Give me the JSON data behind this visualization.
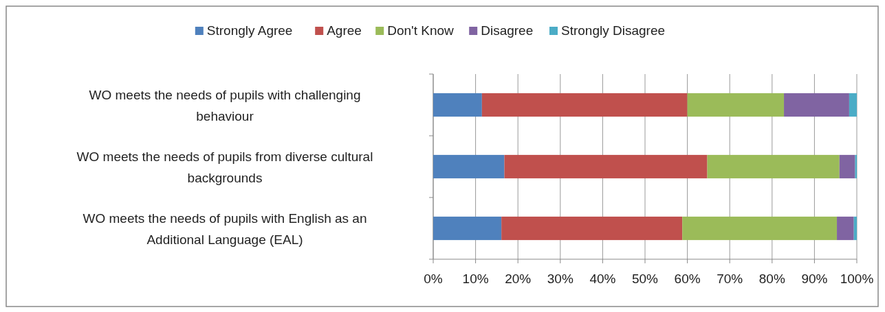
{
  "chart_data": {
    "type": "bar",
    "orientation": "horizontal",
    "stacked": true,
    "categories": [
      "WO meets the needs of pupils with challenging behaviour",
      "WO meets the needs of pupils from diverse cultural backgrounds",
      "WO meets the needs of pupils with English as an Additional Language (EAL)"
    ],
    "series": [
      {
        "name": "Strongly Agree",
        "color": "#4f81bd",
        "values": [
          11.5,
          16.8,
          16.1
        ]
      },
      {
        "name": "Agree",
        "color": "#c0504d",
        "values": [
          48.5,
          47.9,
          42.7
        ]
      },
      {
        "name": "Don't Know",
        "color": "#9bbb59",
        "values": [
          22.8,
          31.2,
          36.5
        ]
      },
      {
        "name": "Disagree",
        "color": "#8064a2",
        "values": [
          15.4,
          3.7,
          4.0
        ]
      },
      {
        "name": "Strongly Disagree",
        "color": "#4bacc6",
        "values": [
          1.8,
          0.4,
          0.7
        ]
      }
    ],
    "xlim": [
      0,
      100
    ],
    "xticks": [
      {
        "value": 0,
        "label": "0%"
      },
      {
        "value": 10,
        "label": "10%"
      },
      {
        "value": 20,
        "label": "20%"
      },
      {
        "value": 30,
        "label": "30%"
      },
      {
        "value": 40,
        "label": "40%"
      },
      {
        "value": 50,
        "label": "50%"
      },
      {
        "value": 60,
        "label": "60%"
      },
      {
        "value": 70,
        "label": "70%"
      },
      {
        "value": 80,
        "label": "80%"
      },
      {
        "value": 90,
        "label": "90%"
      },
      {
        "value": 100,
        "label": "100%"
      }
    ],
    "grid": "x",
    "legend": "top"
  }
}
